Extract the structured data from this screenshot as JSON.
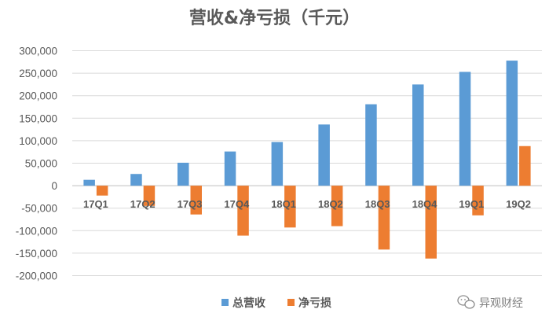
{
  "chart_data": {
    "type": "bar",
    "title": "营收&净亏损（千元）",
    "categories": [
      "17Q1",
      "17Q2",
      "17Q3",
      "17Q4",
      "18Q1",
      "18Q2",
      "18Q3",
      "18Q4",
      "19Q1",
      "19Q2"
    ],
    "series": [
      {
        "name": "总营收",
        "color": "#5B9BD5",
        "values": [
          13000,
          26000,
          51000,
          76000,
          97000,
          136000,
          181000,
          225000,
          253000,
          278000
        ]
      },
      {
        "name": "净亏损",
        "color": "#ED7D31",
        "values": [
          -22000,
          -45000,
          -64000,
          -111000,
          -93000,
          -90000,
          -142000,
          -162000,
          -66000,
          88000
        ]
      }
    ],
    "ylim": [
      -200000,
      300000
    ],
    "yticks": [
      "300,000",
      "250,000",
      "200,000",
      "150,000",
      "100,000",
      "50,000",
      "0",
      "-50,000",
      "-100,000",
      "-150,000",
      "-200,000"
    ],
    "ytick_values": [
      300000,
      250000,
      200000,
      150000,
      100000,
      50000,
      0,
      -50000,
      -100000,
      -150000,
      -200000
    ],
    "grid": true,
    "legend_position": "bottom"
  },
  "watermark": {
    "text": "异观财经",
    "icon": "wechat-icon"
  }
}
